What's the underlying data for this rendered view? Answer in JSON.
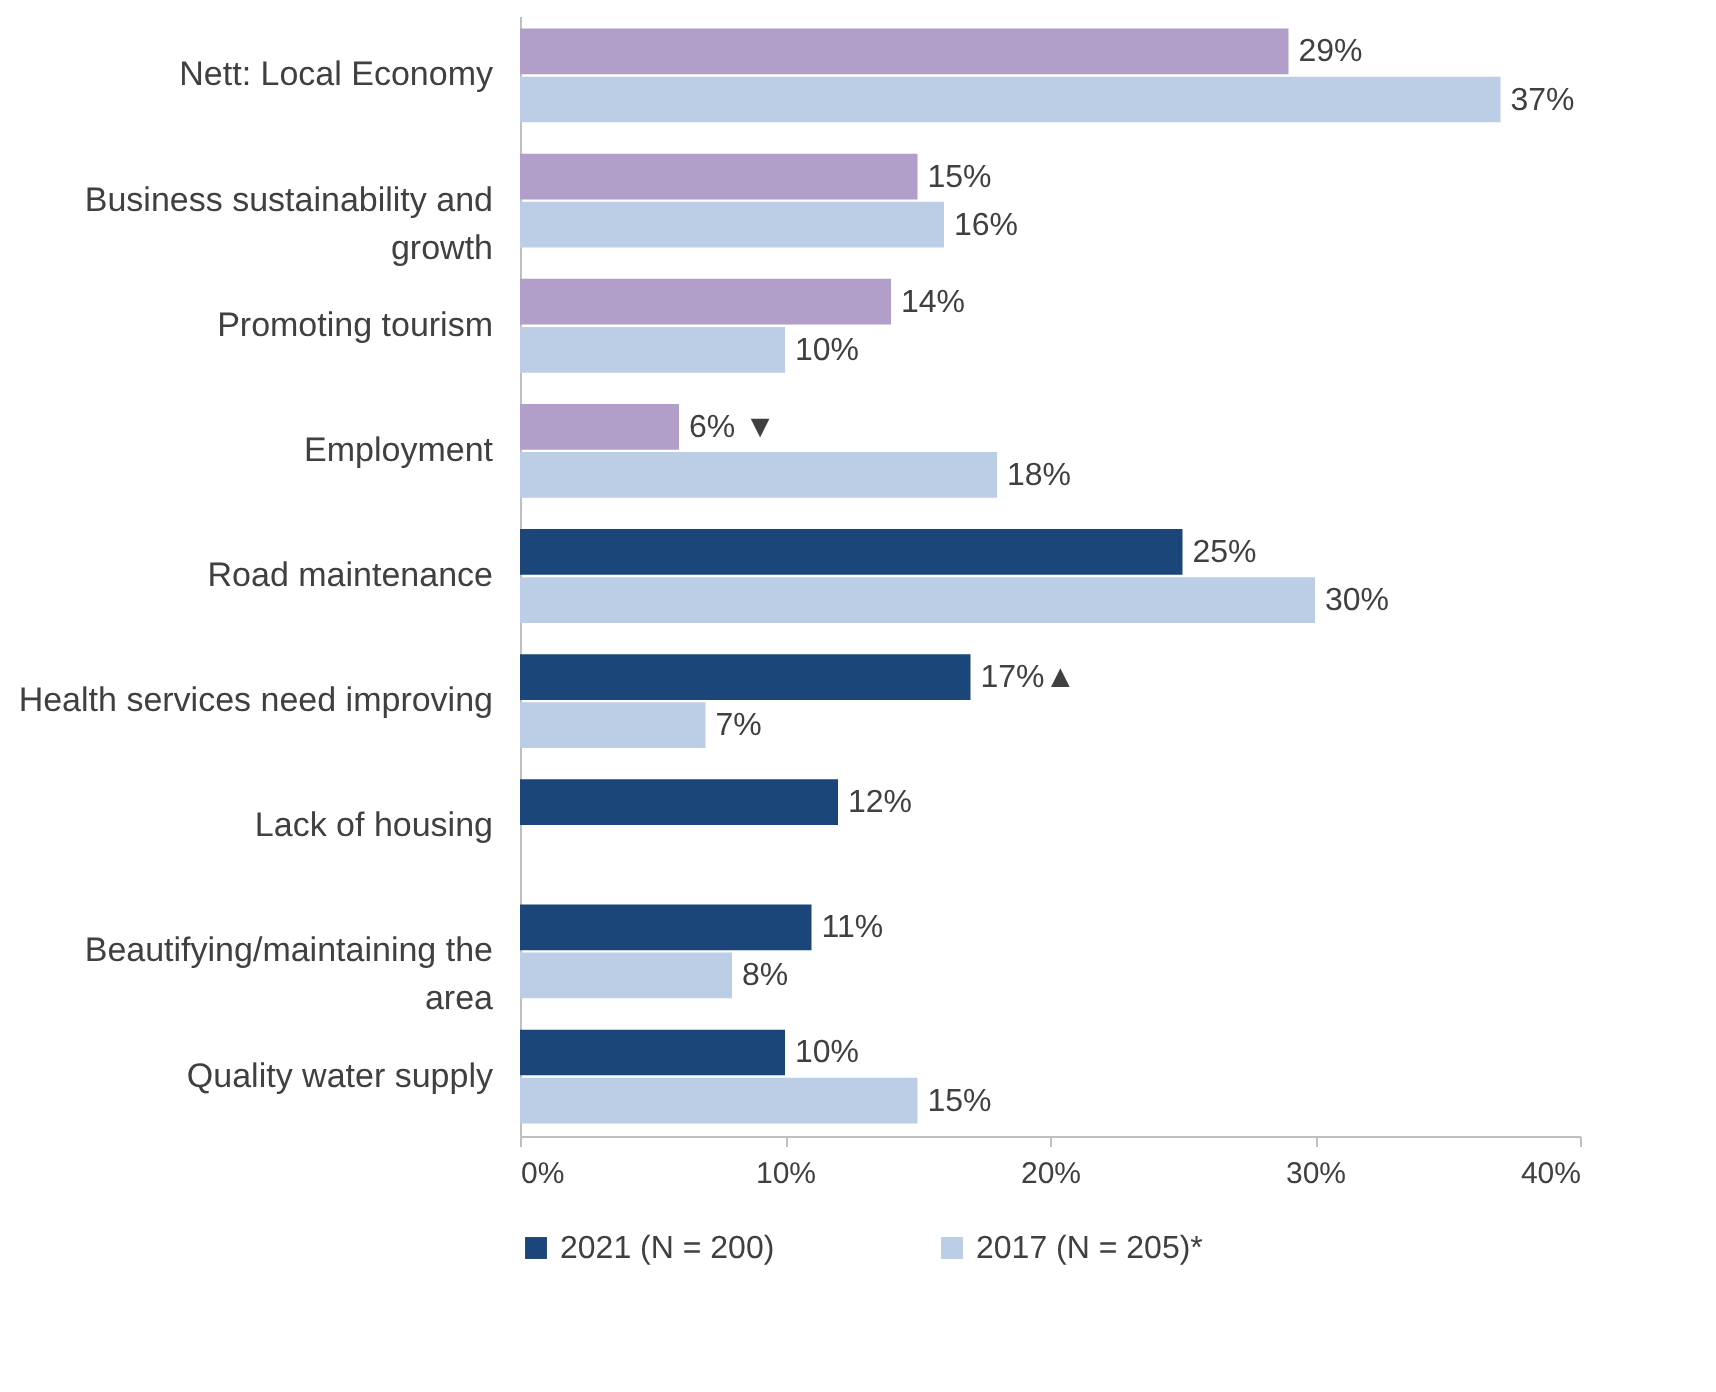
{
  "chart_data": {
    "type": "bar",
    "orientation": "horizontal",
    "categories": [
      "Nett: Local Economy",
      "Business sustainability and growth",
      "Promoting tourism",
      "Employment",
      "Road maintenance",
      "Health services need improving",
      "Lack of housing",
      "Beautifying/maintaining the area",
      "Quality water supply"
    ],
    "series": [
      {
        "name": "2021 (N = 200)",
        "color": "#1b4679",
        "colors": [
          "#b19ec9",
          "#b19ec9",
          "#b19ec9",
          "#b19ec9",
          "#1b4679",
          "#1b4679",
          "#1b4679",
          "#1b4679",
          "#1b4679"
        ],
        "values": [
          29,
          15,
          14,
          6,
          25,
          17,
          12,
          11,
          10
        ],
        "value_labels": [
          "29%",
          "15%",
          "14%",
          "6% ▼",
          "25%",
          "17%▲",
          "12%",
          "11%",
          "10%"
        ]
      },
      {
        "name": "2017 (N = 205)*",
        "color": "#bccde6",
        "values": [
          37,
          16,
          10,
          18,
          30,
          7,
          null,
          8,
          15
        ],
        "value_labels": [
          "37%",
          "16%",
          "10%",
          "18%",
          "30%",
          "7%",
          null,
          "8%",
          "15%"
        ]
      }
    ],
    "xlim": [
      0,
      40
    ],
    "xticks": [
      {
        "value": 0,
        "label": "0%"
      },
      {
        "value": 10,
        "label": "10%"
      },
      {
        "value": 20,
        "label": "20%"
      },
      {
        "value": 30,
        "label": "30%"
      },
      {
        "value": 40,
        "label": "40%"
      }
    ],
    "legend": "bottom"
  }
}
